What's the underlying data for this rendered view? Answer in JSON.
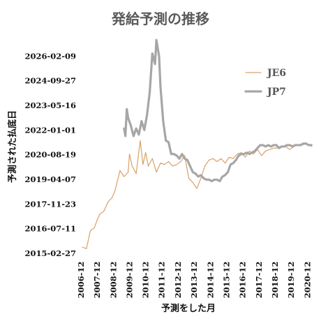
{
  "chart_data": {
    "type": "line",
    "title": "発給予測の推移",
    "xlabel": "予測をした月",
    "ylabel": "予測された払底日",
    "x_ticks": [
      "2006-12",
      "2007-12",
      "2008-12",
      "2009-12",
      "2010-12",
      "2011-12",
      "2012-12",
      "2013-12",
      "2014-12",
      "2015-12",
      "2016-12",
      "2017-12",
      "2018-12",
      "2019-12",
      "2020-12"
    ],
    "y_ticks": [
      "2015-02-27",
      "2016-07-11",
      "2017-11-23",
      "2019-04-07",
      "2020-08-19",
      "2022-01-01",
      "2023-05-16",
      "2024-09-27",
      "2026-02-09"
    ],
    "xlim": [
      "2006-11-01",
      "2021-03-01"
    ],
    "ylim": [
      "2015-02-27",
      "2027-06-24"
    ],
    "legend_position": "right",
    "grid": false,
    "series": [
      {
        "name": "JE6",
        "color": "#d9a066",
        "x": [
          "2006-11",
          "2007-02",
          "2007-05",
          "2007-08",
          "2007-10",
          "2007-12",
          "2008-03",
          "2008-06",
          "2008-09",
          "2008-11",
          "2009-01",
          "2009-03",
          "2009-06",
          "2009-09",
          "2009-10",
          "2009-12",
          "2010-03",
          "2010-06",
          "2010-08",
          "2010-10",
          "2010-12",
          "2011-03",
          "2011-06",
          "2011-09",
          "2011-12",
          "2012-03",
          "2012-06",
          "2012-09",
          "2012-12",
          "2013-03",
          "2013-06",
          "2013-09",
          "2013-12",
          "2014-03",
          "2014-06",
          "2014-09",
          "2014-12",
          "2015-03",
          "2015-06",
          "2015-09",
          "2015-12",
          "2016-03",
          "2016-06",
          "2016-09",
          "2016-12",
          "2017-03",
          "2017-06",
          "2017-09",
          "2017-12",
          "2018-03",
          "2018-06",
          "2018-09",
          "2018-12",
          "2019-03",
          "2019-06",
          "2019-09",
          "2019-12",
          "2020-03",
          "2020-06",
          "2020-09",
          "2020-12",
          "2021-01"
        ],
        "y": [
          "2015-07-01",
          "2015-06-01",
          "2016-06-01",
          "2016-08-01",
          "2017-01-01",
          "2017-05-01",
          "2017-07-01",
          "2018-01-01",
          "2018-04-01",
          "2018-08-01",
          "2019-03-01",
          "2019-10-01",
          "2019-06-01",
          "2019-09-01",
          "2020-09-01",
          "2020-01-01",
          "2019-08-01",
          "2021-06-01",
          "2020-02-01",
          "2020-10-01",
          "2020-01-01",
          "2020-06-01",
          "2019-09-01",
          "2020-03-01",
          "2020-02-01",
          "2020-04-01",
          "2020-01-01",
          "2020-02-01",
          "2020-04-01",
          "2020-08-01",
          "2019-05-01",
          "2019-02-01",
          "2018-10-01",
          "2019-05-01",
          "2020-01-01",
          "2020-05-01",
          "2020-06-01",
          "2020-04-01",
          "2020-06-01",
          "2020-03-01",
          "2020-07-01",
          "2020-06-01",
          "2020-09-01",
          "2020-10-01",
          "2020-07-01",
          "2020-11-01",
          "2020-09-01",
          "2020-12-01",
          "2020-08-01",
          "2020-11-01",
          "2020-12-01",
          "2021-01-01",
          "2021-01-01",
          "2021-02-01",
          "2021-02-01",
          "2020-12-01",
          "2021-02-01",
          "2021-03-01",
          "2021-03-01",
          "2021-04-01",
          "2021-03-01",
          "2021-02-01"
        ]
      },
      {
        "name": "JP7",
        "color": "#a6a6a6",
        "x": [
          "2009-06",
          "2009-07",
          "2009-08",
          "2009-09",
          "2009-11",
          "2010-01",
          "2010-03",
          "2010-05",
          "2010-07",
          "2010-09",
          "2010-11",
          "2011-01",
          "2011-03",
          "2011-05",
          "2011-06",
          "2011-08",
          "2011-09",
          "2011-11",
          "2012-01",
          "2012-03",
          "2012-05",
          "2012-07",
          "2012-09",
          "2012-11",
          "2013-01",
          "2013-03",
          "2013-05",
          "2013-07",
          "2013-09",
          "2013-11",
          "2014-01",
          "2014-03",
          "2014-05",
          "2014-07",
          "2014-09",
          "2014-11",
          "2015-01",
          "2015-03",
          "2015-05",
          "2015-07",
          "2015-09",
          "2015-11",
          "2016-01",
          "2016-03",
          "2016-05",
          "2016-07",
          "2016-09",
          "2016-11",
          "2017-01",
          "2017-03",
          "2017-05",
          "2017-07",
          "2017-09",
          "2017-11",
          "2018-01",
          "2018-03",
          "2018-05",
          "2018-07",
          "2018-09",
          "2018-11",
          "2019-01",
          "2019-03",
          "2019-05",
          "2019-07",
          "2019-09",
          "2019-11",
          "2020-01",
          "2020-03",
          "2020-05",
          "2020-07",
          "2020-09",
          "2020-11",
          "2021-01"
        ],
        "y": [
          "2022-02-01",
          "2021-09-01",
          "2023-03-01",
          "2022-09-01",
          "2022-04-01",
          "2021-09-01",
          "2022-02-01",
          "2021-10-01",
          "2022-07-01",
          "2022-01-01",
          "2022-11-01",
          "2024-02-01",
          "2026-04-01",
          "2025-09-01",
          "2027-01-01",
          "2026-02-01",
          "2024-06-01",
          "2022-07-01",
          "2021-06-01",
          "2021-05-01",
          "2020-09-01",
          "2020-09-01",
          "2020-08-01",
          "2020-06-01",
          "2020-09-01",
          "2020-06-01",
          "2020-05-01",
          "2020-01-01",
          "2019-09-01",
          "2019-08-01",
          "2019-06-01",
          "2019-07-01",
          "2019-05-01",
          "2019-04-01",
          "2019-04-01",
          "2019-03-01",
          "2019-04-01",
          "2019-04-01",
          "2019-03-01",
          "2019-06-01",
          "2019-07-01",
          "2019-09-01",
          "2020-02-01",
          "2020-03-01",
          "2020-05-01",
          "2020-08-01",
          "2020-09-01",
          "2020-09-01",
          "2020-10-01",
          "2020-09-01",
          "2020-10-01",
          "2020-11-01",
          "2021-01-01",
          "2021-03-01",
          "2021-03-01",
          "2021-02-01",
          "2021-03-01",
          "2021-02-01",
          "2021-03-01",
          "2021-03-01",
          "2021-01-01",
          "2021-02-01",
          "2021-02-01",
          "2021-03-01",
          "2021-03-01",
          "2021-02-01",
          "2021-03-01",
          "2021-03-01",
          "2021-03-01",
          "2021-04-01",
          "2021-04-01",
          "2021-03-01",
          "2021-03-01"
        ]
      }
    ]
  }
}
